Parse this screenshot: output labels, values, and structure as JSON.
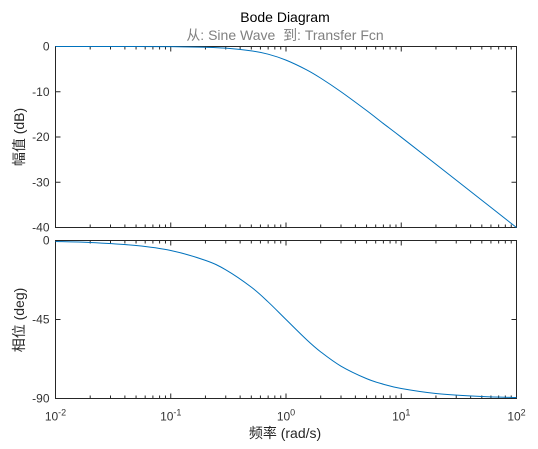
{
  "figure": {
    "title": "Bode Diagram",
    "subtitle_from_label": "从: Sine Wave",
    "subtitle_to_label": "到: Transfer Fcn"
  },
  "chart_data": [
    {
      "type": "line",
      "panel": "magnitude",
      "ylabel": "幅值 (dB)",
      "xscale": "log",
      "xlim": [
        0.01,
        100
      ],
      "ylim": [
        -40,
        0
      ],
      "yticks": [
        0,
        -10,
        -20,
        -30,
        -40
      ],
      "ytick_labels": [
        "0",
        "-10",
        "-20",
        "-30",
        "-40"
      ],
      "grid": false,
      "series": [
        {
          "color": "#0072bd",
          "x": [
            0.01,
            0.02,
            0.05,
            0.1,
            0.2,
            0.3,
            0.5,
            0.7,
            1,
            1.5,
            2,
            3,
            5,
            7,
            10,
            20,
            50,
            100
          ],
          "y": [
            0,
            0,
            -0.01,
            -0.04,
            -0.17,
            -0.37,
            -0.97,
            -1.7,
            -3.01,
            -5.12,
            -6.99,
            -10,
            -14.15,
            -17.03,
            -20.04,
            -26.03,
            -33.98,
            -40
          ]
        }
      ]
    },
    {
      "type": "line",
      "panel": "phase",
      "ylabel": "相位 (deg)",
      "xlabel": "频率  (rad/s)",
      "xscale": "log",
      "xlim": [
        0.01,
        100
      ],
      "ylim": [
        -90,
        0
      ],
      "xticks": [
        0.01,
        0.1,
        1,
        10,
        100
      ],
      "xtick_bases": [
        "10",
        "10",
        "10",
        "10",
        "10"
      ],
      "xtick_exponents": [
        "-2",
        "-1",
        "0",
        "1",
        "2"
      ],
      "yticks": [
        0,
        -45,
        -90
      ],
      "ytick_labels": [
        "0",
        "-45",
        "-90"
      ],
      "grid": false,
      "series": [
        {
          "color": "#0072bd",
          "x": [
            0.01,
            0.02,
            0.05,
            0.1,
            0.2,
            0.3,
            0.5,
            0.7,
            1,
            1.5,
            2,
            3,
            5,
            7,
            10,
            20,
            50,
            100
          ],
          "y": [
            -0.57,
            -1.15,
            -2.86,
            -5.71,
            -11.31,
            -16.7,
            -26.57,
            -34.99,
            -45,
            -56.31,
            -63.43,
            -71.57,
            -78.69,
            -81.87,
            -84.29,
            -87.14,
            -88.85,
            -89.43
          ]
        }
      ]
    }
  ]
}
